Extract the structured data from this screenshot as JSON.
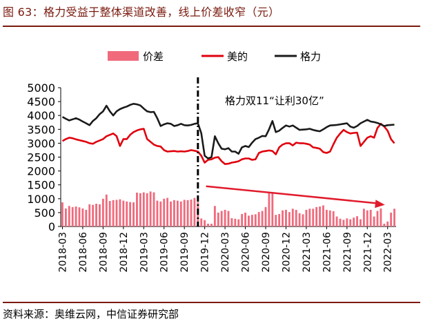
{
  "figure": {
    "title": "图 63：格力受益于整体渠道改善，线上价差收窄（元）",
    "source": "资料来源：奥维云网，中信证券研究部"
  },
  "chart_data": {
    "type": "bar+line",
    "legend": [
      {
        "name": "价差",
        "kind": "bar",
        "color": "#f06a7c"
      },
      {
        "name": "美的",
        "kind": "line",
        "color": "#e0000d"
      },
      {
        "name": "格力",
        "kind": "line",
        "color": "#1a1a1a"
      }
    ],
    "legend_position": "top",
    "ylim": [
      0,
      5000
    ],
    "yticks": [
      "0",
      "500",
      "1000",
      "1500",
      "2000",
      "2500",
      "3000",
      "3500",
      "4000",
      "4500",
      "5000"
    ],
    "xtick_labels": [
      "2018-03",
      "2018-06",
      "2018-09",
      "2018-12",
      "2019-03",
      "2019-06",
      "2019-09",
      "2019-12",
      "2020-03",
      "2020-06",
      "2020-09",
      "2020-12",
      "2021-03",
      "2021-06",
      "2021-09",
      "2021-12",
      "2022-03"
    ],
    "x_start": "2018-03",
    "x_period": "half-month",
    "num_points": 99,
    "series": [
      {
        "name": "格力",
        "values": [
          3950,
          3880,
          3820,
          3860,
          3900,
          3850,
          3780,
          3720,
          3650,
          3800,
          3900,
          4050,
          4150,
          4350,
          4150,
          4000,
          4150,
          4230,
          4280,
          4320,
          4380,
          4420,
          4400,
          4360,
          4250,
          4150,
          4120,
          4130,
          3900,
          3620,
          3680,
          3720,
          3700,
          3620,
          3650,
          3700,
          3650,
          3640,
          3660,
          3700,
          3720,
          3360,
          2550,
          2450,
          2500,
          3250,
          3000,
          2800,
          2780,
          2820,
          2700,
          2700,
          2620,
          2850,
          2900,
          2860,
          3020,
          3150,
          3200,
          3260,
          3250,
          3500,
          3800,
          3400,
          3450,
          3550,
          3640,
          3600,
          3640,
          3560,
          3480,
          3490,
          3500,
          3520,
          3480,
          3450,
          3430,
          3500,
          3580,
          3640,
          3650,
          3660,
          3680,
          3700,
          3720,
          3600,
          3560,
          3620,
          3720,
          3780,
          3840,
          3780,
          3760,
          3730,
          3680,
          3620,
          3650,
          3660,
          3670
        ]
      },
      {
        "name": "美的",
        "values": [
          3080,
          3150,
          3200,
          3180,
          3140,
          3110,
          3080,
          3050,
          3000,
          2980,
          3050,
          3100,
          3150,
          3250,
          3300,
          3350,
          3250,
          2900,
          3150,
          3150,
          3300,
          3400,
          3460,
          3500,
          3520,
          3150,
          3050,
          2950,
          2900,
          2880,
          2750,
          2700,
          2710,
          2720,
          2700,
          2710,
          2700,
          2720,
          2750,
          2730,
          2700,
          2550,
          2300,
          2400,
          2420,
          2480,
          2500,
          2350,
          2250,
          2260,
          2300,
          2320,
          2350,
          2420,
          2450,
          2450,
          2400,
          2420,
          2650,
          2700,
          2720,
          2740,
          2720,
          2600,
          2850,
          2950,
          3000,
          3000,
          2920,
          3020,
          3000,
          3000,
          2980,
          2950,
          2850,
          2830,
          2800,
          2680,
          2650,
          2700,
          2960,
          3200,
          3350,
          3480,
          3400,
          3350,
          3370,
          3380,
          2900,
          3050,
          3200,
          3250,
          3200,
          3550,
          3700,
          3600,
          3450,
          3150,
          3000
        ]
      },
      {
        "name": "价差",
        "values": [
          870,
          650,
          740,
          700,
          720,
          690,
          650,
          600,
          800,
          780,
          820,
          800,
          1000,
          1150,
          920,
          950,
          960,
          980,
          930,
          900,
          880,
          870,
          1220,
          1200,
          1230,
          1200,
          1260,
          1230,
          930,
          900,
          1000,
          1030,
          900,
          950,
          930,
          900,
          960,
          950,
          970,
          1030,
          880,
          290,
          230,
          100,
          100,
          740,
          500,
          560,
          600,
          560,
          300,
          280,
          260,
          450,
          500,
          390,
          420,
          440,
          520,
          560,
          700,
          1200,
          1200,
          420,
          450,
          580,
          600,
          520,
          640,
          600,
          480,
          440,
          600,
          640,
          640,
          700,
          720,
          760,
          600,
          580,
          550,
          360,
          280,
          240,
          290,
          260,
          320,
          370,
          260,
          640,
          580,
          600,
          360,
          560,
          650,
          100,
          180,
          500,
          640
        ]
      }
    ],
    "vertical_marker": {
      "at": "2019-11",
      "style": "dash-dot"
    },
    "annotation": "格力双11“让利30亿”",
    "trend_arrow": {
      "from": "2019-12",
      "to": "2022-03",
      "color": "#e11a2b"
    }
  }
}
